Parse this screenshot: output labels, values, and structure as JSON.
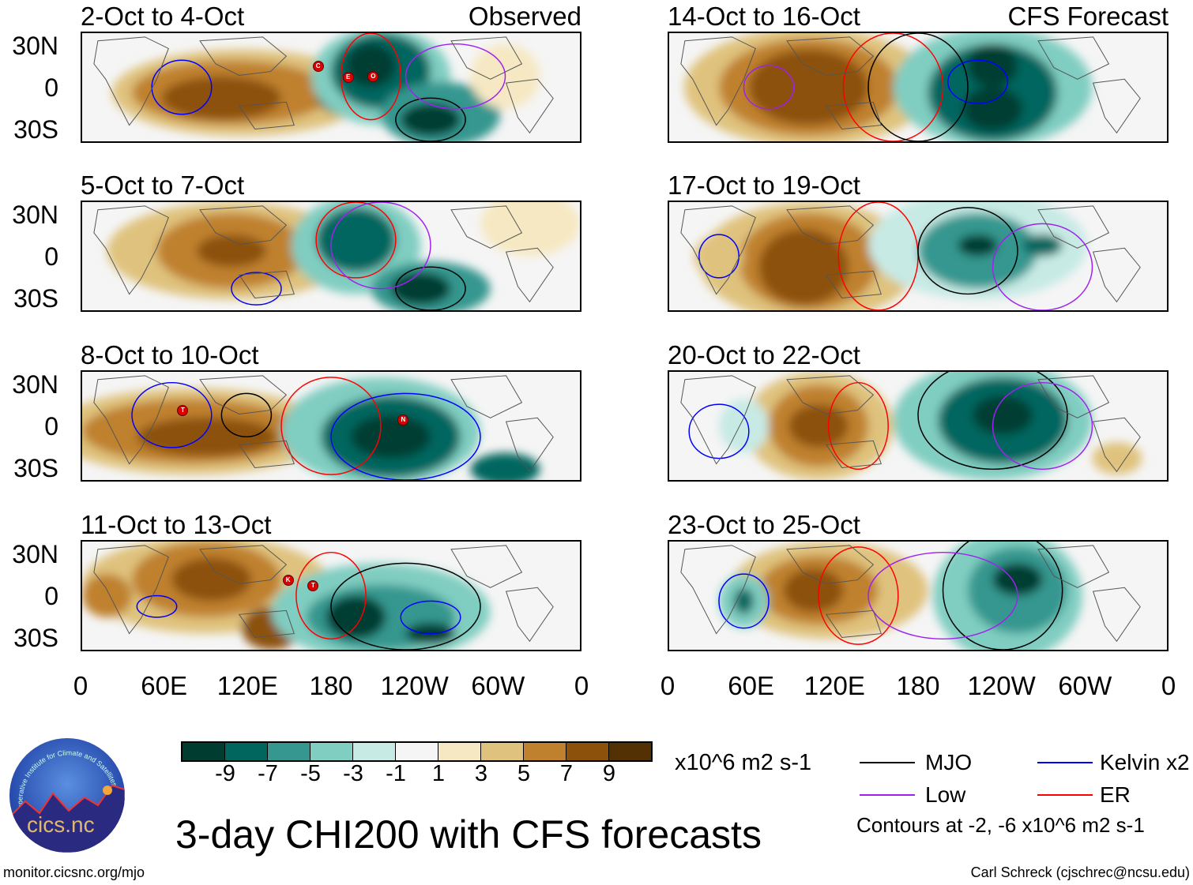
{
  "panels": [
    {
      "title": "2-Oct to 4-Oct",
      "right_label": "Observed",
      "storms": [
        "C",
        "E",
        "O"
      ]
    },
    {
      "title": "5-Oct to 7-Oct",
      "storms": []
    },
    {
      "title": "8-Oct to 10-Oct",
      "storms": [
        "T",
        "N"
      ]
    },
    {
      "title": "11-Oct to 13-Oct",
      "storms": [
        "K",
        "T"
      ]
    },
    {
      "title": "14-Oct to 16-Oct",
      "right_label": "CFS Forecast",
      "storms": []
    },
    {
      "title": "17-Oct to 19-Oct",
      "storms": []
    },
    {
      "title": "20-Oct to 22-Oct",
      "storms": []
    },
    {
      "title": "23-Oct to 25-Oct",
      "storms": []
    }
  ],
  "y_ticks": [
    "30N",
    "0",
    "30S"
  ],
  "x_ticks": [
    "0",
    "60E",
    "120E",
    "180",
    "120W",
    "60W",
    "0"
  ],
  "colorbar": {
    "colors": [
      "#003c30",
      "#01665e",
      "#35978f",
      "#80cdc1",
      "#c7eae5",
      "#f5f5f5",
      "#f6e8c3",
      "#dfc27d",
      "#bf812d",
      "#8c510a",
      "#543005"
    ],
    "labels": [
      "-9",
      "-7",
      "-5",
      "-3",
      "-1",
      "1",
      "3",
      "5",
      "7",
      "9"
    ],
    "units": "x10^6 m2 s-1"
  },
  "legend": {
    "items": [
      {
        "label": "MJO",
        "color": "#000000"
      },
      {
        "label": "Kelvin x2",
        "color": "#0000ff"
      },
      {
        "label": "Low",
        "color": "#a020f0"
      },
      {
        "label": "ER",
        "color": "#ff0000"
      }
    ],
    "contours_note": "Contours at -2, -6 x10^6 m2 s-1"
  },
  "title": "3-day CHI200 with CFS forecasts",
  "logo_text": "cics.nc",
  "logo_ring_text": "Cooperative Institute for Climate and Satellites",
  "url": "monitor.cicsnc.org/mjo",
  "credit": "Carl Schreck (cjschrec@ncsu.edu)"
}
